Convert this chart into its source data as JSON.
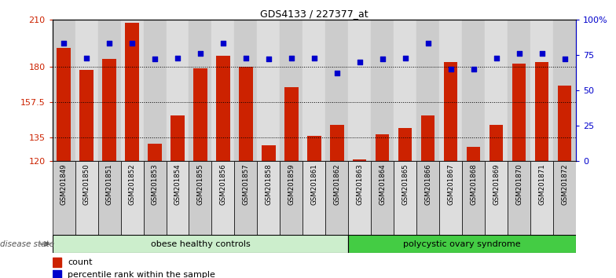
{
  "title": "GDS4133 / 227377_at",
  "samples": [
    "GSM201849",
    "GSM201850",
    "GSM201851",
    "GSM201852",
    "GSM201853",
    "GSM201854",
    "GSM201855",
    "GSM201856",
    "GSM201857",
    "GSM201858",
    "GSM201859",
    "GSM201861",
    "GSM201862",
    "GSM201863",
    "GSM201864",
    "GSM201865",
    "GSM201866",
    "GSM201867",
    "GSM201868",
    "GSM201869",
    "GSM201870",
    "GSM201871",
    "GSM201872"
  ],
  "counts": [
    192,
    178,
    185,
    208,
    131,
    149,
    179,
    187,
    180,
    130,
    167,
    136,
    143,
    121,
    137,
    141,
    149,
    183,
    129,
    143,
    182,
    183,
    168
  ],
  "percentiles": [
    83,
    73,
    83,
    83,
    72,
    73,
    76,
    83,
    73,
    72,
    73,
    73,
    62,
    70,
    72,
    73,
    83,
    65,
    65,
    73,
    76,
    76,
    72
  ],
  "ylim_left": [
    120,
    210
  ],
  "ylim_right": [
    0,
    100
  ],
  "yticks_left": [
    120,
    135,
    157.5,
    180,
    210
  ],
  "yticks_right": [
    0,
    25,
    50,
    75,
    100
  ],
  "ytick_labels_right": [
    "0",
    "25",
    "50",
    "75",
    "100%"
  ],
  "bar_color": "#cc2200",
  "scatter_color": "#0000cc",
  "group1_label": "obese healthy controls",
  "group1_count": 13,
  "group2_label": "polycystic ovary syndrome",
  "group2_count": 10,
  "group1_color": "#cceecc",
  "group2_color": "#44cc44",
  "disease_state_label": "disease state",
  "legend_count_label": "count",
  "legend_percentile_label": "percentile rank within the sample",
  "col_bg_even": "#cccccc",
  "col_bg_odd": "#dddddd",
  "white": "#ffffff"
}
